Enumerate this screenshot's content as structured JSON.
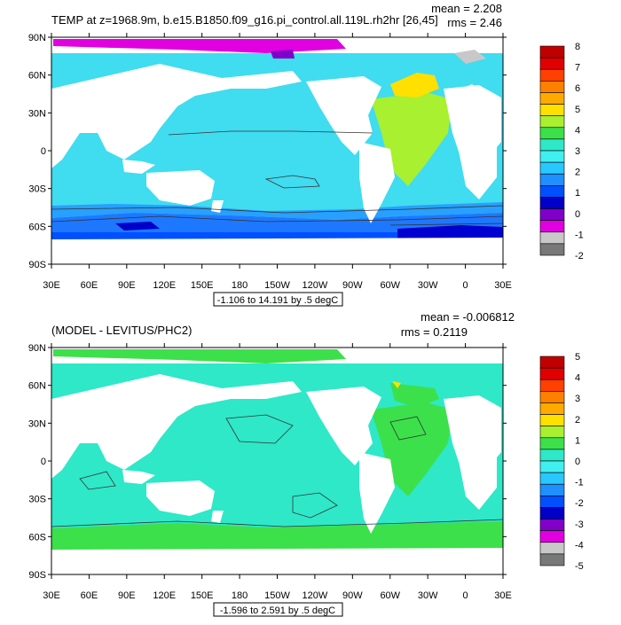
{
  "panels": [
    {
      "title": "TEMP at z=1968.9m, b.e15.B1850.f09_g16.pi_control.all.119L.rh2hr [26,45]",
      "mean_label": "mean = 2.208",
      "rms_label": "rms = 2.46",
      "range_label": "-1.106 to 14.191 by .5 degC",
      "colorbar_labels": [
        "8",
        "7",
        "6",
        "5",
        "4",
        "3",
        "2",
        "1",
        "0",
        "-1",
        "-2"
      ],
      "ocean_fill": "#40dcf0",
      "band_colors": [
        "#0050ff",
        "#1e78ff",
        "#28a0ff",
        "#40dcf0"
      ]
    },
    {
      "title": "(MODEL - LEVITUS/PHC2)",
      "mean_label": "mean = -0.006812",
      "rms_label": "rms = 0.2119",
      "range_label": "-1.596 to 2.591 by .5 degC",
      "colorbar_labels": [
        "5",
        "4",
        "3",
        "2",
        "1",
        "0",
        "-1",
        "-2",
        "-3",
        "-4",
        "-5"
      ],
      "ocean_fill": "#2ee8c8",
      "band_colors": [
        "#2ee8c8",
        "#3cef9a",
        "#3ce04a"
      ]
    }
  ],
  "axes": {
    "lat_labels": [
      "90N",
      "60N",
      "30N",
      "0",
      "30S",
      "60S",
      "90S"
    ],
    "lon_labels": [
      "30E",
      "60E",
      "90E",
      "120E",
      "150E",
      "180",
      "150W",
      "120W",
      "90W",
      "60W",
      "30W",
      "0",
      "30E"
    ]
  },
  "colorbar_colors": [
    "#c00000",
    "#e00000",
    "#ff4000",
    "#ff8000",
    "#ffaa00",
    "#ffe000",
    "#a8f030",
    "#3ce04a",
    "#2ee8c8",
    "#40f0f0",
    "#28c8ff",
    "#1e90ff",
    "#0050ff",
    "#0000c8",
    "#8000c8",
    "#e000e0",
    "#c8c8c8",
    "#787878"
  ]
}
